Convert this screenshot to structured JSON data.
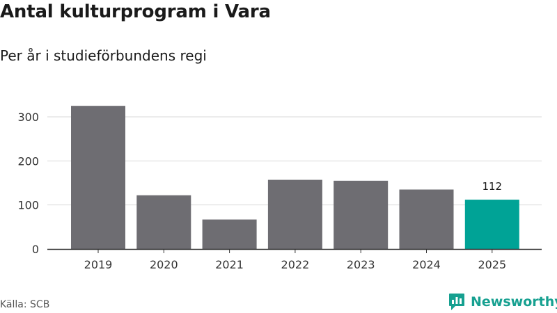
{
  "header": {
    "title": "Antal kulturprogram i Vara",
    "subtitle": "Per år i studieförbundens regi"
  },
  "footer": {
    "source": "Källa: SCB",
    "brand": "Newsworthy",
    "brand_icon": "bar-chart-speech-bubble-icon"
  },
  "colors": {
    "bar": "#6e6d72",
    "highlight": "#00a396",
    "grid": "#d9d9d9",
    "axis": "#333333",
    "brand": "#16a090"
  },
  "chart_data": {
    "type": "bar",
    "title": "Antal kulturprogram i Vara",
    "subtitle": "Per år i studieförbundens regi",
    "xlabel": "",
    "ylabel": "",
    "categories": [
      "2019",
      "2020",
      "2021",
      "2022",
      "2023",
      "2024",
      "2025"
    ],
    "values": [
      325,
      122,
      67,
      157,
      155,
      135,
      112
    ],
    "highlight_index": 6,
    "data_labels": [
      {
        "index": 6,
        "text": "112"
      }
    ],
    "ylim": [
      0,
      350
    ],
    "yticks": [
      0,
      100,
      200,
      300
    ],
    "grid": true,
    "legend": "none"
  }
}
